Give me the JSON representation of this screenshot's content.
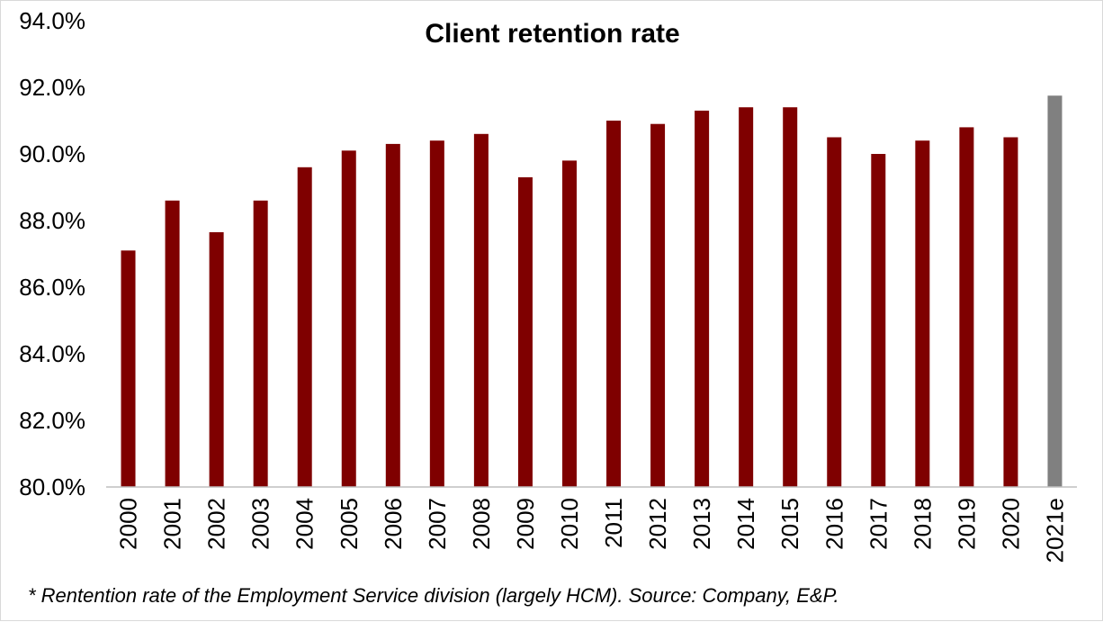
{
  "chart_data": {
    "type": "bar",
    "title": "Client retention rate",
    "xlabel": "",
    "ylabel": "",
    "categories": [
      "2000",
      "2001",
      "2002",
      "2003",
      "2004",
      "2005",
      "2006",
      "2007",
      "2008",
      "2009",
      "2010",
      "2011",
      "2012",
      "2013",
      "2014",
      "2015",
      "2016",
      "2017",
      "2018",
      "2019",
      "2020",
      "2021e"
    ],
    "values": [
      87.1,
      88.6,
      87.65,
      88.6,
      89.6,
      90.1,
      90.3,
      90.4,
      90.6,
      89.3,
      89.8,
      91.0,
      90.9,
      91.3,
      91.4,
      91.4,
      90.5,
      90.0,
      90.4,
      90.8,
      90.5,
      91.75
    ],
    "ylim": [
      80,
      94
    ],
    "yticks": [
      "80.0%",
      "82.0%",
      "84.0%",
      "86.0%",
      "88.0%",
      "90.0%",
      "92.0%",
      "94.0%"
    ],
    "ytick_values": [
      80,
      82,
      84,
      86,
      88,
      90,
      92,
      94
    ],
    "grid": false,
    "legend": "none",
    "colors": {
      "actual": "#7f0000",
      "estimate": "#808080"
    },
    "estimate_categories": [
      "2021e"
    ]
  },
  "footnote": "* Rentention rate of the Employment Service division (largely HCM). Source: Company, E&P."
}
